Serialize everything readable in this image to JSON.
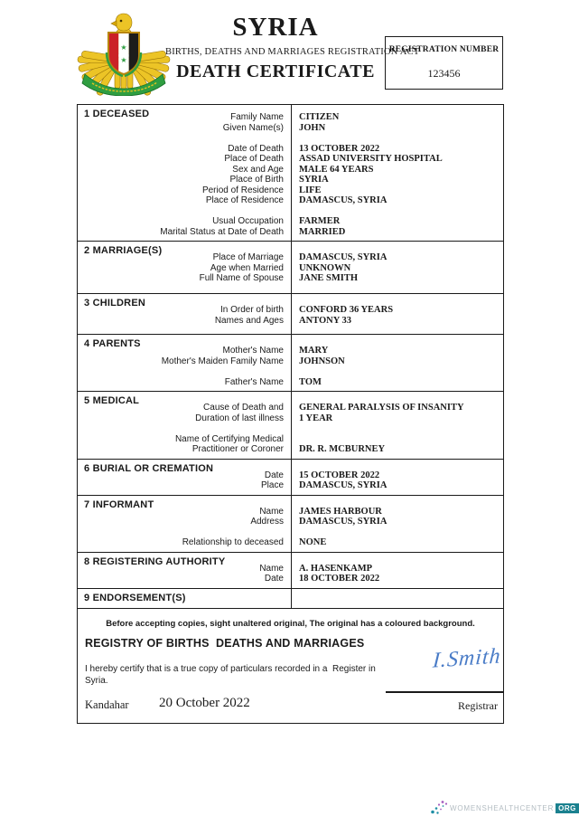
{
  "header": {
    "country": "SYRIA",
    "act_line": "BIRTHS, DEATHS AND MARRIAGES REGISTRATION ACT",
    "document_title": "DEATH CERTIFICATE",
    "registration": {
      "label": "REGISTRATION NUMBER",
      "number": "123456"
    },
    "emblem_name": "syria-coat-of-arms"
  },
  "sections": [
    {
      "title": "1 DECEASED",
      "rows": [
        {
          "label": "Family Name",
          "value": "CITIZEN"
        },
        {
          "label": "Given Name(s)",
          "value": "JOHN"
        },
        {
          "label": "",
          "value": ""
        },
        {
          "label": "Date of Death",
          "value": "13 OCTOBER 2022"
        },
        {
          "label": "Place of Death",
          "value": "ASSAD UNIVERSITY HOSPITAL"
        },
        {
          "label": "Sex and Age",
          "value": "MALE 64 YEARS"
        },
        {
          "label": "Place of Birth",
          "value": "SYRIA"
        },
        {
          "label": "Period of Residence",
          "value": "LIFE"
        },
        {
          "label": "Place of Residence",
          "value": "DAMASCUS, SYRIA"
        },
        {
          "label": "",
          "value": ""
        },
        {
          "label": "Usual Occupation",
          "value": "FARMER"
        },
        {
          "label": "Marital Status at Date of Death",
          "value": "MARRIED"
        }
      ]
    },
    {
      "title": "2 MARRIAGE(S)",
      "rows": [
        {
          "label": "Place of Marriage",
          "value": "DAMASCUS, SYRIA"
        },
        {
          "label": "Age when Married",
          "value": "UNKNOWN"
        },
        {
          "label": "Full Name of Spouse",
          "value": "JANE SMITH"
        }
      ]
    },
    {
      "title": "3 CHILDREN",
      "rows": [
        {
          "label": "In Order of birth",
          "value": "CONFORD 36 YEARS"
        },
        {
          "label": "Names and Ages",
          "value": "ANTONY 33"
        }
      ]
    },
    {
      "title": "4 PARENTS",
      "rows": [
        {
          "label": "Mother's Name",
          "value": "MARY"
        },
        {
          "label": "Mother's Maiden Family Name",
          "value": "JOHNSON"
        },
        {
          "label": "",
          "value": ""
        },
        {
          "label": "Father's Name",
          "value": "TOM"
        }
      ]
    },
    {
      "title": "5 MEDICAL",
      "rows": [
        {
          "label": "Cause of Death and",
          "value": "GENERAL PARALYSIS OF INSANITY"
        },
        {
          "label": "Duration of last illness",
          "value": "1 YEAR"
        },
        {
          "label": "",
          "value": ""
        },
        {
          "label": "Name of Certifying Medical",
          "value": ""
        },
        {
          "label": "Practitioner or Coroner",
          "value": "DR. R. MCBURNEY"
        }
      ]
    },
    {
      "title": "6 BURIAL OR CREMATION",
      "rows": [
        {
          "label": "Date",
          "value": "15 OCTOBER 2022"
        },
        {
          "label": "Place",
          "value": "DAMASCUS, SYRIA"
        }
      ]
    },
    {
      "title": "7 INFORMANT",
      "rows": [
        {
          "label": "Name",
          "value": "JAMES HARBOUR"
        },
        {
          "label": "Address",
          "value": "DAMASCUS, SYRIA"
        },
        {
          "label": "",
          "value": ""
        },
        {
          "label": "Relationship to deceased",
          "value": "NONE"
        }
      ]
    },
    {
      "title": "8 REGISTERING AUTHORITY",
      "rows": [
        {
          "label": "Name",
          "value": "A. HASENKAMP"
        },
        {
          "label": "Date",
          "value": "18 OCTOBER 2022"
        }
      ]
    },
    {
      "title": "9 ENDORSEMENT(S)",
      "rows": []
    }
  ],
  "footer": {
    "notice": "Before accepting copies, sight unaltered original, The original has a coloured background.",
    "registry_heading": "REGISTRY OF BIRTHS  DEATHS AND MARRIAGES",
    "certify_statement": "I hereby certify that is a true copy of particulars recorded in a  Register in\nSyria.",
    "place": "Kandahar",
    "date": "20 October 2022",
    "signature": "I.Smith",
    "registrar_label": "Registrar"
  },
  "watermark": {
    "brand": "WOMENSHEALTHCENTER",
    "tld": "ORG",
    "brand_color": "#b3bcc2",
    "tld_bg": "#1b818f",
    "dot_purple": "#a55bbf",
    "dot_teal": "#1f8fa6"
  },
  "colors": {
    "border": "#1a1a1a",
    "signature_blue": "#4a7cc7",
    "emblem_gold": "#ecc426",
    "emblem_green": "#2f9e41",
    "flag_red": "#cb2127",
    "flag_black": "#1d1d1b"
  }
}
